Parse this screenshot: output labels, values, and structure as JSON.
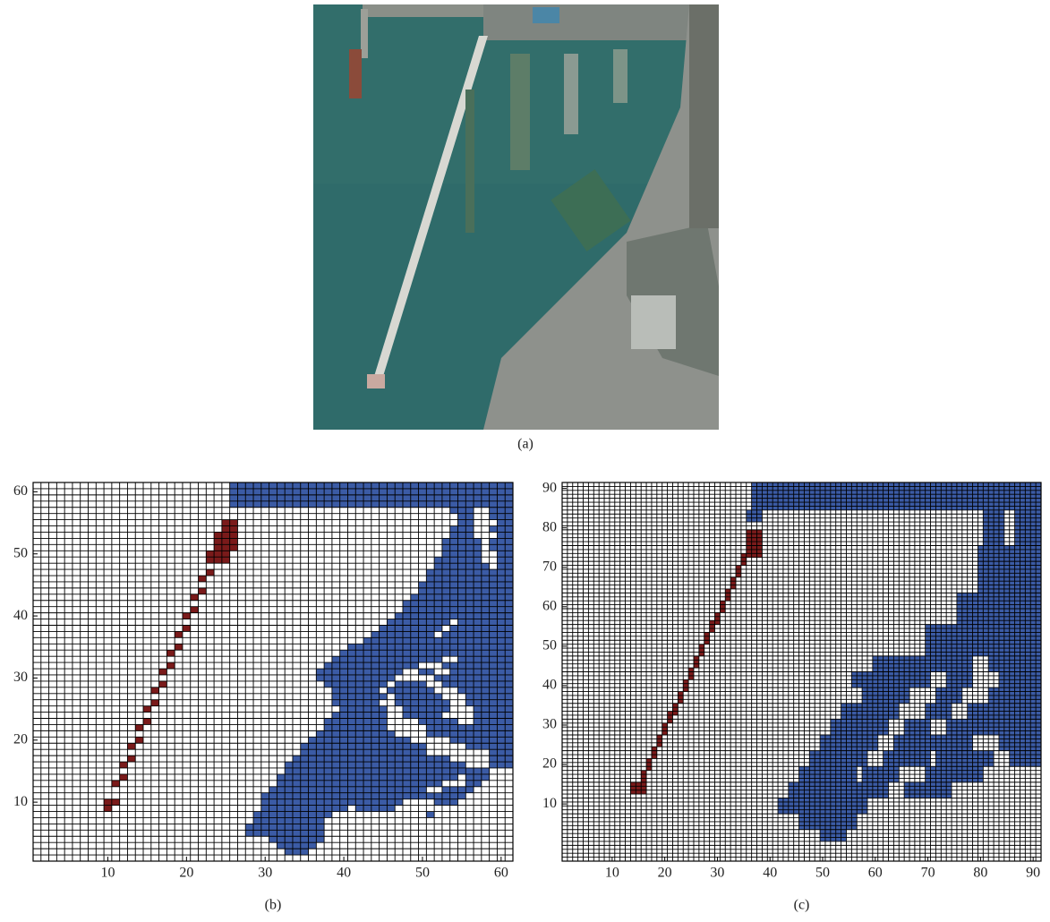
{
  "image_caption": "(a)",
  "chart_data": [
    {
      "type": "grid",
      "caption": "(b)",
      "xlim": [
        0.5,
        61.5
      ],
      "ylim": [
        0.5,
        61.5
      ],
      "xticks": [
        10,
        20,
        30,
        40,
        50,
        60
      ],
      "yticks": [
        10,
        20,
        30,
        40,
        50,
        60
      ],
      "obstacle_color": "#3b5ba5",
      "path_color": "#7a1a1a",
      "obstacles": [
        [
          26,
          61,
          58,
          61
        ],
        [
          54,
          56,
          57,
          57
        ],
        [
          59,
          61,
          57,
          57
        ],
        [
          55,
          56,
          55,
          56
        ],
        [
          59,
          61,
          56,
          56
        ],
        [
          60,
          61,
          55,
          55
        ],
        [
          54,
          56,
          53,
          54
        ],
        [
          59,
          61,
          54,
          54
        ],
        [
          60,
          61,
          53,
          53
        ],
        [
          53,
          57,
          51,
          52
        ],
        [
          59,
          61,
          51,
          52
        ],
        [
          60,
          61,
          50,
          50
        ],
        [
          53,
          57,
          50,
          50
        ],
        [
          52,
          57,
          49,
          49
        ],
        [
          60,
          61,
          48,
          49
        ],
        [
          52,
          58,
          48,
          48
        ],
        [
          51,
          58,
          46,
          47
        ],
        [
          59,
          61,
          46,
          47
        ],
        [
          50,
          61,
          44,
          45
        ],
        [
          49,
          61,
          43,
          43
        ],
        [
          48,
          61,
          41,
          42
        ],
        [
          47,
          61,
          40,
          40
        ],
        [
          46,
          53,
          39,
          39
        ],
        [
          55,
          61,
          39,
          39
        ],
        [
          45,
          52,
          38,
          38
        ],
        [
          54,
          61,
          38,
          38
        ],
        [
          44,
          51,
          37,
          37
        ],
        [
          53,
          61,
          37,
          37
        ],
        [
          43,
          61,
          36,
          36
        ],
        [
          41,
          61,
          35,
          35
        ],
        [
          40,
          61,
          34,
          34
        ],
        [
          39,
          52,
          33,
          33
        ],
        [
          55,
          61,
          33,
          33
        ],
        [
          38,
          49,
          32,
          32
        ],
        [
          53,
          61,
          32,
          32
        ],
        [
          37,
          47,
          31,
          31
        ],
        [
          50,
          51,
          31,
          31
        ],
        [
          54,
          61,
          31,
          31
        ],
        [
          37,
          46,
          30,
          30
        ],
        [
          52,
          61,
          30,
          30
        ],
        [
          38,
          45,
          29,
          29
        ],
        [
          47,
          50,
          29,
          29
        ],
        [
          53,
          61,
          29,
          29
        ],
        [
          39,
          44,
          28,
          28
        ],
        [
          46,
          51,
          28,
          28
        ],
        [
          55,
          61,
          28,
          28
        ],
        [
          39,
          45,
          27,
          27
        ],
        [
          47,
          52,
          27,
          27
        ],
        [
          56,
          61,
          26,
          27
        ],
        [
          39,
          44,
          26,
          26
        ],
        [
          47,
          53,
          26,
          26
        ],
        [
          40,
          45,
          25,
          25
        ],
        [
          48,
          53,
          25,
          25
        ],
        [
          57,
          61,
          23,
          25
        ],
        [
          39,
          45,
          24,
          24
        ],
        [
          48,
          52,
          24,
          24
        ],
        [
          38,
          45,
          22,
          23
        ],
        [
          50,
          54,
          23,
          23
        ],
        [
          51,
          61,
          21,
          22
        ],
        [
          37,
          46,
          21,
          21
        ],
        [
          36,
          48,
          20,
          20
        ],
        [
          54,
          61,
          20,
          20
        ],
        [
          35,
          50,
          18,
          19
        ],
        [
          56,
          61,
          19,
          19
        ],
        [
          59,
          61,
          16,
          18
        ],
        [
          34,
          53,
          17,
          17
        ],
        [
          33,
          55,
          16,
          16
        ],
        [
          33,
          58,
          15,
          15
        ],
        [
          32,
          54,
          14,
          14
        ],
        [
          56,
          58,
          14,
          14
        ],
        [
          32,
          52,
          13,
          13
        ],
        [
          56,
          57,
          13,
          13
        ],
        [
          31,
          50,
          12,
          12
        ],
        [
          53,
          56,
          12,
          12
        ],
        [
          30,
          55,
          11,
          11
        ],
        [
          30,
          47,
          10,
          10
        ],
        [
          52,
          54,
          10,
          10
        ],
        [
          30,
          40,
          9,
          9
        ],
        [
          42,
          46,
          9,
          9
        ],
        [
          29,
          38,
          8,
          8
        ],
        [
          51,
          51,
          8,
          8
        ],
        [
          29,
          37,
          7,
          7
        ],
        [
          28,
          37,
          5,
          6
        ],
        [
          31,
          37,
          4,
          4
        ],
        [
          32,
          36,
          3,
          3
        ],
        [
          33,
          35,
          2,
          2
        ]
      ],
      "path": [
        [
          10,
          10,
          9,
          10
        ],
        [
          11,
          11,
          10,
          10
        ],
        [
          11,
          11,
          13,
          13
        ],
        [
          12,
          12,
          14,
          14
        ],
        [
          12,
          12,
          16,
          16
        ],
        [
          13,
          13,
          17,
          17
        ],
        [
          13,
          13,
          19,
          19
        ],
        [
          14,
          14,
          20,
          20
        ],
        [
          14,
          14,
          22,
          22
        ],
        [
          15,
          15,
          23,
          23
        ],
        [
          15,
          15,
          25,
          25
        ],
        [
          16,
          16,
          26,
          26
        ],
        [
          16,
          16,
          28,
          28
        ],
        [
          17,
          17,
          29,
          29
        ],
        [
          17,
          17,
          31,
          31
        ],
        [
          18,
          18,
          32,
          32
        ],
        [
          18,
          18,
          34,
          34
        ],
        [
          19,
          19,
          35,
          35
        ],
        [
          19,
          19,
          37,
          37
        ],
        [
          20,
          20,
          38,
          38
        ],
        [
          20,
          20,
          40,
          40
        ],
        [
          21,
          21,
          41,
          41
        ],
        [
          21,
          21,
          43,
          43
        ],
        [
          22,
          22,
          44,
          44
        ],
        [
          22,
          22,
          46,
          46
        ],
        [
          23,
          23,
          47,
          47
        ],
        [
          23,
          25,
          49,
          50
        ],
        [
          24,
          26,
          51,
          53
        ],
        [
          25,
          26,
          54,
          55
        ]
      ]
    },
    {
      "type": "grid",
      "caption": "(c)",
      "xlim": [
        0.5,
        91.5
      ],
      "ylim": [
        -4.5,
        91.5
      ],
      "xticks": [
        10,
        20,
        30,
        40,
        50,
        60,
        70,
        80,
        90
      ],
      "yticks": [
        10,
        20,
        30,
        40,
        50,
        60,
        70,
        80,
        90
      ],
      "obstacle_color": "#3b5ba5",
      "path_color": "#7a1a1a",
      "obstacles": [
        [
          37,
          91,
          85,
          91
        ],
        [
          36,
          38,
          82,
          84
        ],
        [
          81,
          84,
          76,
          84
        ],
        [
          87,
          91,
          72,
          84
        ],
        [
          80,
          91,
          64,
          75
        ],
        [
          76,
          91,
          56,
          63
        ],
        [
          70,
          91,
          48,
          55
        ],
        [
          60,
          78,
          44,
          47
        ],
        [
          82,
          91,
          44,
          47
        ],
        [
          56,
          70,
          40,
          43
        ],
        [
          74,
          78,
          40,
          43
        ],
        [
          84,
          91,
          40,
          43
        ],
        [
          58,
          66,
          36,
          39
        ],
        [
          72,
          76,
          36,
          39
        ],
        [
          82,
          91,
          36,
          39
        ],
        [
          54,
          64,
          32,
          35
        ],
        [
          70,
          74,
          32,
          35
        ],
        [
          78,
          91,
          32,
          35
        ],
        [
          52,
          62,
          28,
          31
        ],
        [
          66,
          70,
          28,
          31
        ],
        [
          74,
          91,
          28,
          31
        ],
        [
          50,
          60,
          24,
          27
        ],
        [
          64,
          78,
          24,
          27
        ],
        [
          84,
          91,
          24,
          27
        ],
        [
          48,
          58,
          20,
          23
        ],
        [
          62,
          70,
          20,
          23
        ],
        [
          72,
          82,
          20,
          23
        ],
        [
          86,
          91,
          20,
          23
        ],
        [
          46,
          56,
          16,
          19
        ],
        [
          58,
          64,
          16,
          19
        ],
        [
          70,
          80,
          16,
          19
        ],
        [
          44,
          62,
          12,
          15
        ],
        [
          66,
          74,
          12,
          15
        ],
        [
          42,
          58,
          8,
          11
        ],
        [
          46,
          56,
          4,
          7
        ],
        [
          50,
          54,
          1,
          3
        ]
      ],
      "path": [
        [
          14,
          16,
          13,
          15
        ],
        [
          16,
          16,
          16,
          18
        ],
        [
          17,
          17,
          19,
          21
        ],
        [
          18,
          18,
          22,
          24
        ],
        [
          19,
          19,
          25,
          27
        ],
        [
          20,
          20,
          28,
          30
        ],
        [
          21,
          21,
          31,
          33
        ],
        [
          22,
          22,
          33,
          35
        ],
        [
          23,
          23,
          36,
          38
        ],
        [
          24,
          24,
          39,
          41
        ],
        [
          25,
          25,
          42,
          44
        ],
        [
          26,
          26,
          45,
          47
        ],
        [
          27,
          27,
          48,
          50
        ],
        [
          28,
          28,
          51,
          53
        ],
        [
          29,
          29,
          54,
          56
        ],
        [
          30,
          30,
          56,
          58
        ],
        [
          31,
          31,
          59,
          61
        ],
        [
          32,
          32,
          62,
          64
        ],
        [
          33,
          33,
          65,
          67
        ],
        [
          34,
          34,
          68,
          70
        ],
        [
          35,
          35,
          71,
          73
        ],
        [
          36,
          38,
          73,
          79
        ]
      ]
    }
  ]
}
